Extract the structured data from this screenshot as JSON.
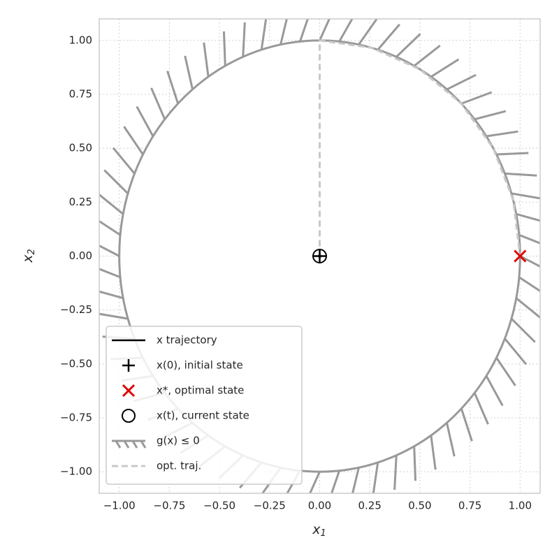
{
  "chart_data": {
    "type": "line",
    "xlabel": {
      "base": "x",
      "sub": "1"
    },
    "ylabel": {
      "base": "x",
      "sub": "2"
    },
    "xlim": [
      -1.1,
      1.1
    ],
    "ylim": [
      -1.1,
      1.1
    ],
    "xticks": [
      {
        "value": -1,
        "label": "−1.00"
      },
      {
        "value": -0.75,
        "label": "−0.75"
      },
      {
        "value": -0.5,
        "label": "−0.50"
      },
      {
        "value": -0.25,
        "label": "−0.25"
      },
      {
        "value": 0,
        "label": "0.00"
      },
      {
        "value": 0.25,
        "label": "0.25"
      },
      {
        "value": 0.5,
        "label": "0.50"
      },
      {
        "value": 0.75,
        "label": "0.75"
      },
      {
        "value": 1,
        "label": "1.00"
      }
    ],
    "yticks": [
      {
        "value": -1,
        "label": "−1.00"
      },
      {
        "value": -0.75,
        "label": "−0.75"
      },
      {
        "value": -0.5,
        "label": "−0.50"
      },
      {
        "value": -0.25,
        "label": "−0.25"
      },
      {
        "value": 0,
        "label": "0.00"
      },
      {
        "value": 0.25,
        "label": "0.25"
      },
      {
        "value": 0.5,
        "label": "0.50"
      },
      {
        "value": 0.75,
        "label": "0.75"
      },
      {
        "value": 1,
        "label": "1.00"
      }
    ],
    "grid": true,
    "legend": "lower left",
    "series": [
      {
        "name": "x trajectory",
        "kind": "line",
        "color": "#000000",
        "marker_color": "#8fce5a",
        "x": [
          0
        ],
        "y": [
          0
        ]
      },
      {
        "name": "x(0), initial state",
        "kind": "plus",
        "color": "#000000",
        "x": [
          0
        ],
        "y": [
          0
        ]
      },
      {
        "name": "x*, optimal state",
        "kind": "cross",
        "color": "#e00000",
        "x": [
          1
        ],
        "y": [
          0
        ]
      },
      {
        "name": "x(t), current state",
        "kind": "ring",
        "color": "#000000",
        "x": [
          0
        ],
        "y": [
          0
        ]
      },
      {
        "name": "g(x) ≤ 0",
        "kind": "constraint",
        "color": "#999999",
        "center": [
          0,
          0
        ],
        "radius": 1
      },
      {
        "name": "opt. traj.",
        "kind": "dashed",
        "color": "#c8c8c8",
        "x": [
          0,
          0,
          0.259,
          0.5,
          0.707,
          0.866,
          0.966,
          1
        ],
        "y": [
          0,
          1,
          0.966,
          0.866,
          0.707,
          0.5,
          0.259,
          0
        ]
      }
    ]
  }
}
